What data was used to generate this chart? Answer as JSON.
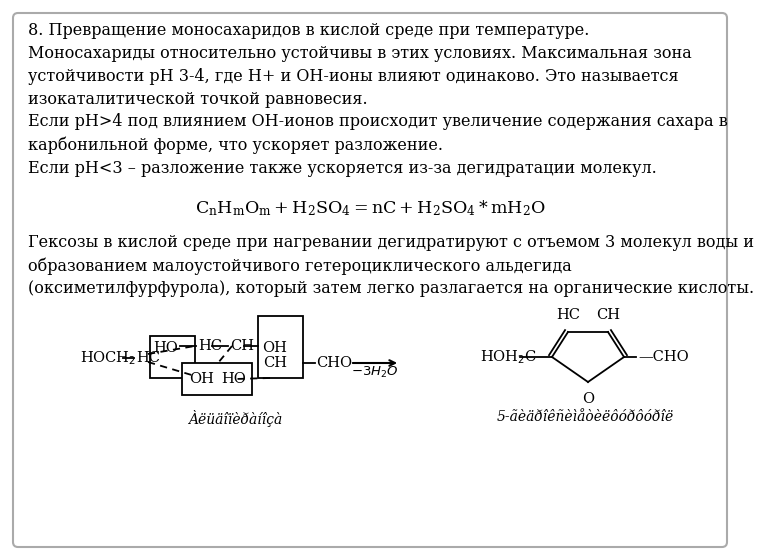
{
  "bg_color": "#ffffff",
  "border_color": "#aaaaaa",
  "text1": "8. Превращение моносахаридов в кислой среде при температуре.\nМоносахариды относительно устойчивы в этих условиях. Максимальная зона\nустойчивости рН 3-4, где Н+ и ОН-ионы влияют одинаково. Это называется\nизокаталитической точкой равновесия.\nЕсли рН>4 под влиянием ОН-ионов происходит увеличение содержания сахара в\nкарбонильной форме, что ускоряет разложение.\nЕсли рН<3 – разложение также ускоряется из-за дегидратации молекул.",
  "text1_fontsize": 11.5,
  "text2": "Гексозы в кислой среде при нагревании дегидратируют с отъемом 3 молекул воды и\nобразованием малоустойчивого гетероциклического альдегида\n(оксиметилфурфурола), который затем легко разлагается на органические кислоты.",
  "text2_fontsize": 11.5,
  "caption1": "Àëüäîïèðàíîçà",
  "caption2": "5-ãèäðîêñèìåòèëôóðôóðîë",
  "caption_fontsize": 10
}
